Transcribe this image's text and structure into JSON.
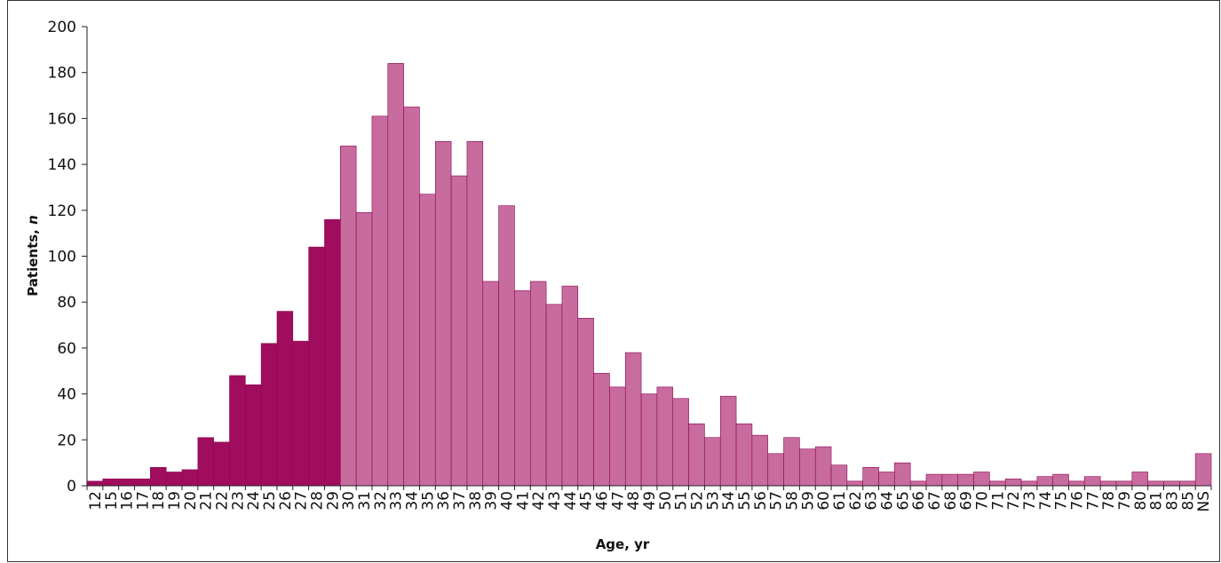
{
  "chart_data": {
    "type": "bar",
    "xlabel": "Age, yr",
    "ylabel_prefix": "Patients, ",
    "ylabel_italic": "n",
    "ylim": [
      0,
      200
    ],
    "yticks": [
      0,
      20,
      40,
      60,
      80,
      100,
      120,
      140,
      160,
      180,
      200
    ],
    "grid": false,
    "legend": "none",
    "colors": {
      "under_30": "#a00c5e",
      "30_and_over": "#c86b9f",
      "edge": "#8a0a50"
    },
    "highlight_through_category": "29",
    "categories": [
      "12",
      "15",
      "16",
      "17",
      "18",
      "19",
      "20",
      "21",
      "22",
      "23",
      "24",
      "25",
      "26",
      "27",
      "28",
      "29",
      "30",
      "31",
      "32",
      "33",
      "34",
      "35",
      "36",
      "37",
      "38",
      "39",
      "40",
      "41",
      "42",
      "43",
      "44",
      "45",
      "46",
      "47",
      "48",
      "49",
      "50",
      "51",
      "52",
      "53",
      "54",
      "55",
      "56",
      "57",
      "58",
      "59",
      "60",
      "61",
      "62",
      "63",
      "64",
      "65",
      "66",
      "67",
      "68",
      "69",
      "70",
      "71",
      "72",
      "73",
      "74",
      "75",
      "76",
      "77",
      "78",
      "79",
      "80",
      "81",
      "83",
      "85",
      "NS"
    ],
    "values": [
      2,
      3,
      3,
      3,
      8,
      6,
      7,
      21,
      19,
      48,
      44,
      62,
      76,
      63,
      104,
      116,
      148,
      119,
      161,
      184,
      165,
      127,
      150,
      135,
      150,
      89,
      122,
      85,
      89,
      79,
      87,
      73,
      49,
      43,
      58,
      40,
      43,
      38,
      27,
      21,
      39,
      27,
      22,
      14,
      21,
      16,
      17,
      9,
      2,
      8,
      6,
      10,
      2,
      5,
      5,
      5,
      6,
      2,
      3,
      2,
      4,
      5,
      2,
      4,
      2,
      2,
      6,
      2,
      2,
      2,
      14
    ]
  }
}
